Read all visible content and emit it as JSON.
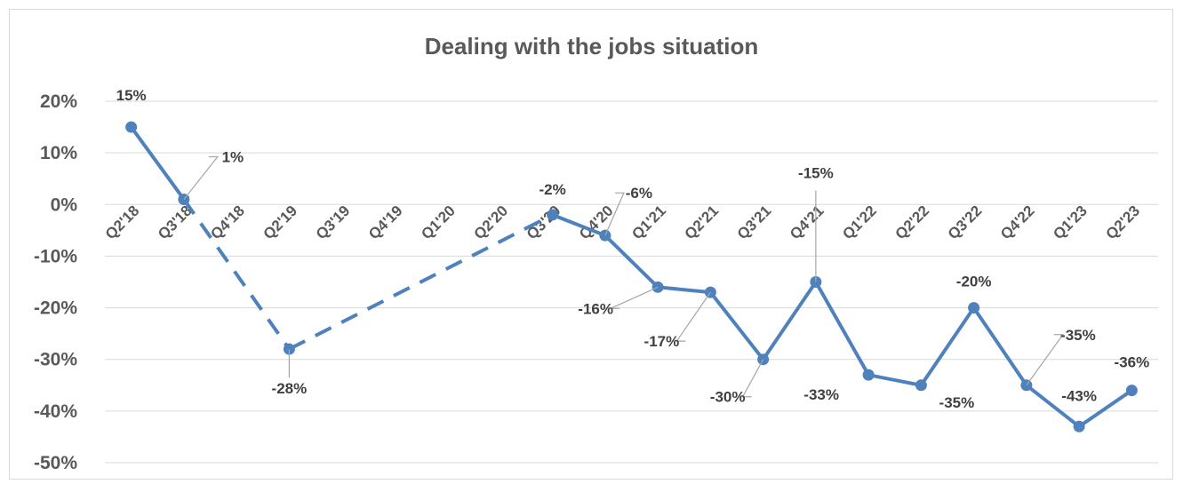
{
  "chart_data": {
    "type": "line",
    "title": "Dealing with the jobs situation",
    "xlabel": "",
    "ylabel": "",
    "ylim": [
      -50,
      20
    ],
    "y_ticks": [
      "20%",
      "10%",
      "0%",
      "-10%",
      "-20%",
      "-30%",
      "-40%",
      "-50%"
    ],
    "y_tick_values": [
      20,
      10,
      0,
      -10,
      -20,
      -30,
      -40,
      -50
    ],
    "grid": "horizontal",
    "legend": "none",
    "series_color": "#4f81bd",
    "categories": [
      "Q2'18",
      "Q3'18",
      "Q4'18",
      "Q2'19",
      "Q3'19",
      "Q4'19",
      "Q1'20",
      "Q2'20",
      "Q3'20",
      "Q4'20",
      "Q1'21",
      "Q2'21",
      "Q3'21",
      "Q4'21",
      "Q1'22",
      "Q2'22",
      "Q3'22",
      "Q4'22",
      "Q1'23",
      "Q2'23"
    ],
    "series": [
      {
        "values": [
          15,
          1,
          null,
          -28,
          null,
          null,
          null,
          null,
          -2,
          -6,
          -16,
          -17,
          -30,
          -15,
          -33,
          -35,
          -20,
          -35,
          -43,
          -36
        ],
        "labels": [
          "15%",
          "1%",
          "",
          "-28%",
          "",
          "",
          "",
          "",
          "-2%",
          "-6%",
          "-16%",
          "-17%",
          "-30%",
          "-15%",
          "-33%",
          "-35%",
          "-20%",
          "-35%",
          "-43%",
          "-36%"
        ],
        "gaps_dashed": true
      }
    ]
  }
}
